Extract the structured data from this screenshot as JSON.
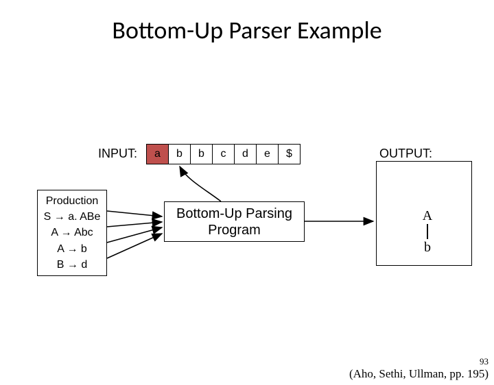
{
  "title": "Bottom-Up Parser Example",
  "input_label": "INPUT:",
  "output_label": "OUTPUT:",
  "input_cells": [
    {
      "text": "a",
      "bg": "#bf504d"
    },
    {
      "text": "b",
      "bg": "#ffffff"
    },
    {
      "text": "b",
      "bg": "#ffffff"
    },
    {
      "text": "c",
      "bg": "#ffffff"
    },
    {
      "text": "d",
      "bg": "#ffffff"
    },
    {
      "text": "e",
      "bg": "#ffffff"
    },
    {
      "text": "$",
      "bg": "#ffffff"
    }
  ],
  "production_header": "Production",
  "productions": [
    "S → a. ABe",
    "A → Abc",
    "A → b",
    "B → d"
  ],
  "program_label": "Bottom-Up Parsing Program",
  "tree": {
    "root": "A",
    "leaf": "b"
  },
  "citation": "(Aho, Sethi, Ullman, pp. 195)",
  "slide_number": "93",
  "colors": {
    "highlight": "#bf504d",
    "text": "#000000",
    "border": "#000000",
    "background": "#ffffff"
  },
  "fonts": {
    "title_family": "Calibri",
    "title_size_pt": 28,
    "body_family": "Arial",
    "body_size_pt": 14,
    "serif_family": "Times New Roman"
  },
  "arrows": [
    {
      "from": "program-box-top",
      "to": "input-cell-1",
      "curved": true
    },
    {
      "from": "production-box-right",
      "to": "program-box-left",
      "count": 4
    },
    {
      "from": "program-box-right",
      "to": "output-box-left"
    }
  ]
}
